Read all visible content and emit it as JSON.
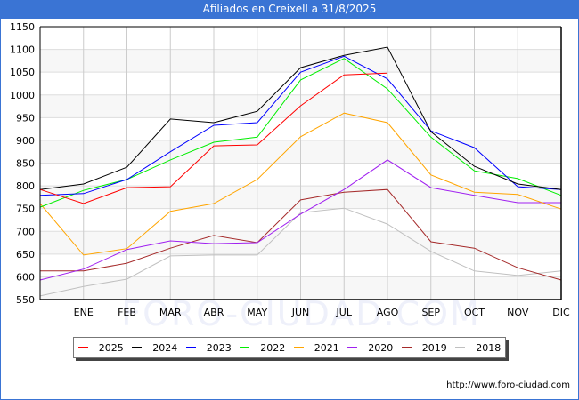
{
  "header": {
    "title": "Afiliados en Creixell a 31/8/2025"
  },
  "footer": {
    "url": "http://www.foro-ciudad.com"
  },
  "watermark": "FORO-CIUDAD.COM",
  "chart_data": {
    "type": "line",
    "title": "Afiliados en Creixell a 31/8/2025",
    "xlabel": "",
    "ylabel": "",
    "x": [
      "",
      "ENE",
      "FEB",
      "MAR",
      "ABR",
      "MAY",
      "JUN",
      "JUL",
      "AGO",
      "SEP",
      "OCT",
      "NOV",
      "DIC"
    ],
    "ylim": [
      550,
      1150
    ],
    "yticks": [
      550,
      600,
      650,
      700,
      750,
      800,
      850,
      900,
      950,
      1000,
      1050,
      1100,
      1150
    ],
    "grid": true,
    "legend_position": "bottom",
    "series": [
      {
        "name": "2025",
        "color": "#ff0000",
        "values": [
          792,
          761,
          796,
          798,
          888,
          890,
          976,
          1044,
          1048,
          null,
          null,
          null,
          null
        ]
      },
      {
        "name": "2024",
        "color": "#000000",
        "values": [
          792,
          804,
          841,
          947,
          939,
          964,
          1060,
          1087,
          1105,
          919,
          843,
          804,
          792
        ]
      },
      {
        "name": "2023",
        "color": "#0000ff",
        "values": [
          779,
          783,
          814,
          875,
          933,
          939,
          1050,
          1085,
          1035,
          921,
          884,
          798,
          792
        ]
      },
      {
        "name": "2022",
        "color": "#00ee00",
        "values": [
          753,
          790,
          814,
          857,
          896,
          907,
          1033,
          1080,
          1013,
          907,
          833,
          816,
          779
        ]
      },
      {
        "name": "2021",
        "color": "#ffa500",
        "values": [
          761,
          648,
          662,
          744,
          761,
          814,
          908,
          960,
          939,
          824,
          786,
          781,
          749
        ]
      },
      {
        "name": "2020",
        "color": "#a020f0",
        "values": [
          593,
          617,
          660,
          679,
          673,
          675,
          738,
          792,
          857,
          796,
          779,
          763,
          763
        ]
      },
      {
        "name": "2019",
        "color": "#a52a2a",
        "values": [
          613,
          613,
          630,
          663,
          691,
          675,
          769,
          786,
          792,
          677,
          663,
          620,
          593
        ]
      },
      {
        "name": "2018",
        "color": "#c0c0c0",
        "values": [
          558,
          579,
          595,
          646,
          648,
          648,
          741,
          751,
          716,
          656,
          613,
          603,
          613
        ]
      }
    ]
  }
}
